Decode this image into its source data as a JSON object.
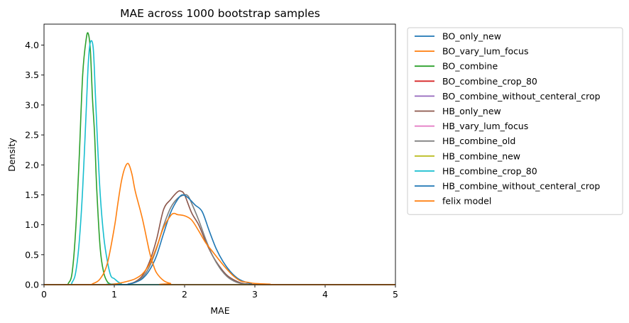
{
  "chart_data": {
    "type": "line",
    "title": "MAE across 1000 bootstrap samples",
    "xlabel": "MAE",
    "ylabel": "Density",
    "xlim": [
      0,
      5
    ],
    "ylim": [
      0,
      4.35
    ],
    "xticks": [
      "0",
      "1",
      "2",
      "3",
      "4",
      "5"
    ],
    "yticks": [
      "0.0",
      "0.5",
      "1.0",
      "1.5",
      "2.0",
      "2.5",
      "3.0",
      "3.5",
      "4.0"
    ],
    "grid": false,
    "legend_position": "outside right",
    "series": [
      {
        "name": "BO_only_new",
        "color": "#1f77b4",
        "x": [
          0,
          5
        ],
        "y": [
          0,
          0
        ]
      },
      {
        "name": "BO_vary_lum_focus",
        "color": "#ff7f0e",
        "x": [
          0,
          5
        ],
        "y": [
          0,
          0
        ]
      },
      {
        "name": "BO_combine",
        "color": "#2ca02c",
        "x": [
          0,
          0.3,
          0.35,
          0.4,
          0.45,
          0.5,
          0.55,
          0.6,
          0.63,
          0.66,
          0.69,
          0.72,
          0.75,
          0.8,
          0.85,
          0.9,
          0.95,
          1.0,
          1.1,
          5
        ],
        "y": [
          0,
          0,
          0.03,
          0.2,
          0.9,
          2.1,
          3.5,
          4.1,
          4.19,
          3.9,
          3.1,
          2.5,
          1.6,
          0.6,
          0.2,
          0.05,
          0.01,
          0,
          0,
          0
        ]
      },
      {
        "name": "BO_combine_crop_80",
        "color": "#d62728",
        "x": [
          0,
          5
        ],
        "y": [
          0,
          0
        ]
      },
      {
        "name": "BO_combine_without_centeral_crop",
        "color": "#9467bd",
        "x": [
          0,
          5
        ],
        "y": [
          0,
          0
        ]
      },
      {
        "name": "HB_only_new",
        "color": "#8c564b",
        "x": [
          0,
          1.1,
          1.2,
          1.3,
          1.4,
          1.5,
          1.6,
          1.7,
          1.8,
          1.9,
          1.95,
          2.0,
          2.1,
          2.2,
          2.3,
          2.4,
          2.5,
          2.6,
          2.7,
          2.8,
          2.9,
          3.0,
          5
        ],
        "y": [
          0,
          0,
          0.01,
          0.05,
          0.15,
          0.38,
          0.75,
          1.25,
          1.42,
          1.55,
          1.56,
          1.5,
          1.2,
          1.0,
          0.72,
          0.48,
          0.3,
          0.16,
          0.08,
          0.03,
          0.01,
          0,
          0
        ]
      },
      {
        "name": "HB_vary_lum_focus",
        "color": "#e377c2",
        "x": [
          0,
          5
        ],
        "y": [
          0,
          0
        ]
      },
      {
        "name": "HB_combine_old",
        "color": "#7f7f7f",
        "x": [
          0,
          1.1,
          1.2,
          1.3,
          1.4,
          1.5,
          1.6,
          1.7,
          1.8,
          1.9,
          2.0,
          2.05,
          2.1,
          2.2,
          2.3,
          2.4,
          2.5,
          2.6,
          2.7,
          2.8,
          2.9,
          3.0,
          5
        ],
        "y": [
          0,
          0,
          0.01,
          0.04,
          0.12,
          0.3,
          0.6,
          0.98,
          1.28,
          1.44,
          1.5,
          1.48,
          1.36,
          1.08,
          0.76,
          0.48,
          0.28,
          0.14,
          0.06,
          0.02,
          0.01,
          0,
          0
        ]
      },
      {
        "name": "HB_combine_new",
        "color": "#bcbd22",
        "x": [
          0,
          5
        ],
        "y": [
          0,
          0
        ]
      },
      {
        "name": "HB_combine_crop_80",
        "color": "#17becf",
        "x": [
          0,
          0.35,
          0.4,
          0.45,
          0.5,
          0.55,
          0.6,
          0.63,
          0.66,
          0.7,
          0.73,
          0.76,
          0.8,
          0.85,
          0.9,
          0.95,
          1.0,
          1.05,
          1.1,
          1.2,
          5
        ],
        "y": [
          0,
          0,
          0.04,
          0.2,
          0.7,
          1.6,
          2.9,
          3.7,
          4.05,
          3.95,
          3.2,
          2.4,
          1.5,
          0.8,
          0.4,
          0.15,
          0.1,
          0.05,
          0.02,
          0,
          0
        ]
      },
      {
        "name": "HB_combine_without_centeral_crop",
        "color": "#1f77b4",
        "x": [
          0,
          1.1,
          1.2,
          1.3,
          1.4,
          1.5,
          1.6,
          1.7,
          1.8,
          1.9,
          1.97,
          2.05,
          2.15,
          2.25,
          2.35,
          2.45,
          2.55,
          2.65,
          2.75,
          2.85,
          2.95,
          3.1,
          5
        ],
        "y": [
          0,
          0,
          0.01,
          0.04,
          0.1,
          0.24,
          0.48,
          0.85,
          1.2,
          1.42,
          1.5,
          1.45,
          1.33,
          1.22,
          0.9,
          0.6,
          0.38,
          0.22,
          0.11,
          0.05,
          0.02,
          0,
          0
        ]
      },
      {
        "name": "felix model",
        "color": "#ff7f0e",
        "x": [
          0,
          0.6,
          0.7,
          0.8,
          0.9,
          1.0,
          1.05,
          1.1,
          1.15,
          1.2,
          1.25,
          1.3,
          1.4,
          1.5,
          1.55,
          1.6,
          1.7,
          1.8,
          1.9,
          5
        ],
        "y": [
          0,
          0,
          0.02,
          0.1,
          0.35,
          0.95,
          1.35,
          1.72,
          1.95,
          2.02,
          1.85,
          1.55,
          1.1,
          0.55,
          0.35,
          0.2,
          0.07,
          0.02,
          0,
          0
        ]
      },
      {
        "name": "felix model (wide component)",
        "color": "#ff7f0e",
        "legend": false,
        "x": [
          0,
          0.8,
          1.0,
          1.2,
          1.3,
          1.4,
          1.5,
          1.6,
          1.7,
          1.8,
          1.85,
          1.9,
          2.0,
          2.1,
          2.2,
          2.3,
          2.4,
          2.5,
          2.6,
          2.7,
          2.8,
          2.9,
          3.0,
          3.2,
          3.4,
          5
        ],
        "y": [
          0,
          0,
          0.01,
          0.06,
          0.1,
          0.18,
          0.34,
          0.62,
          0.95,
          1.15,
          1.19,
          1.17,
          1.15,
          1.08,
          0.9,
          0.7,
          0.55,
          0.4,
          0.26,
          0.14,
          0.06,
          0.04,
          0.02,
          0.01,
          0,
          0
        ]
      }
    ]
  }
}
